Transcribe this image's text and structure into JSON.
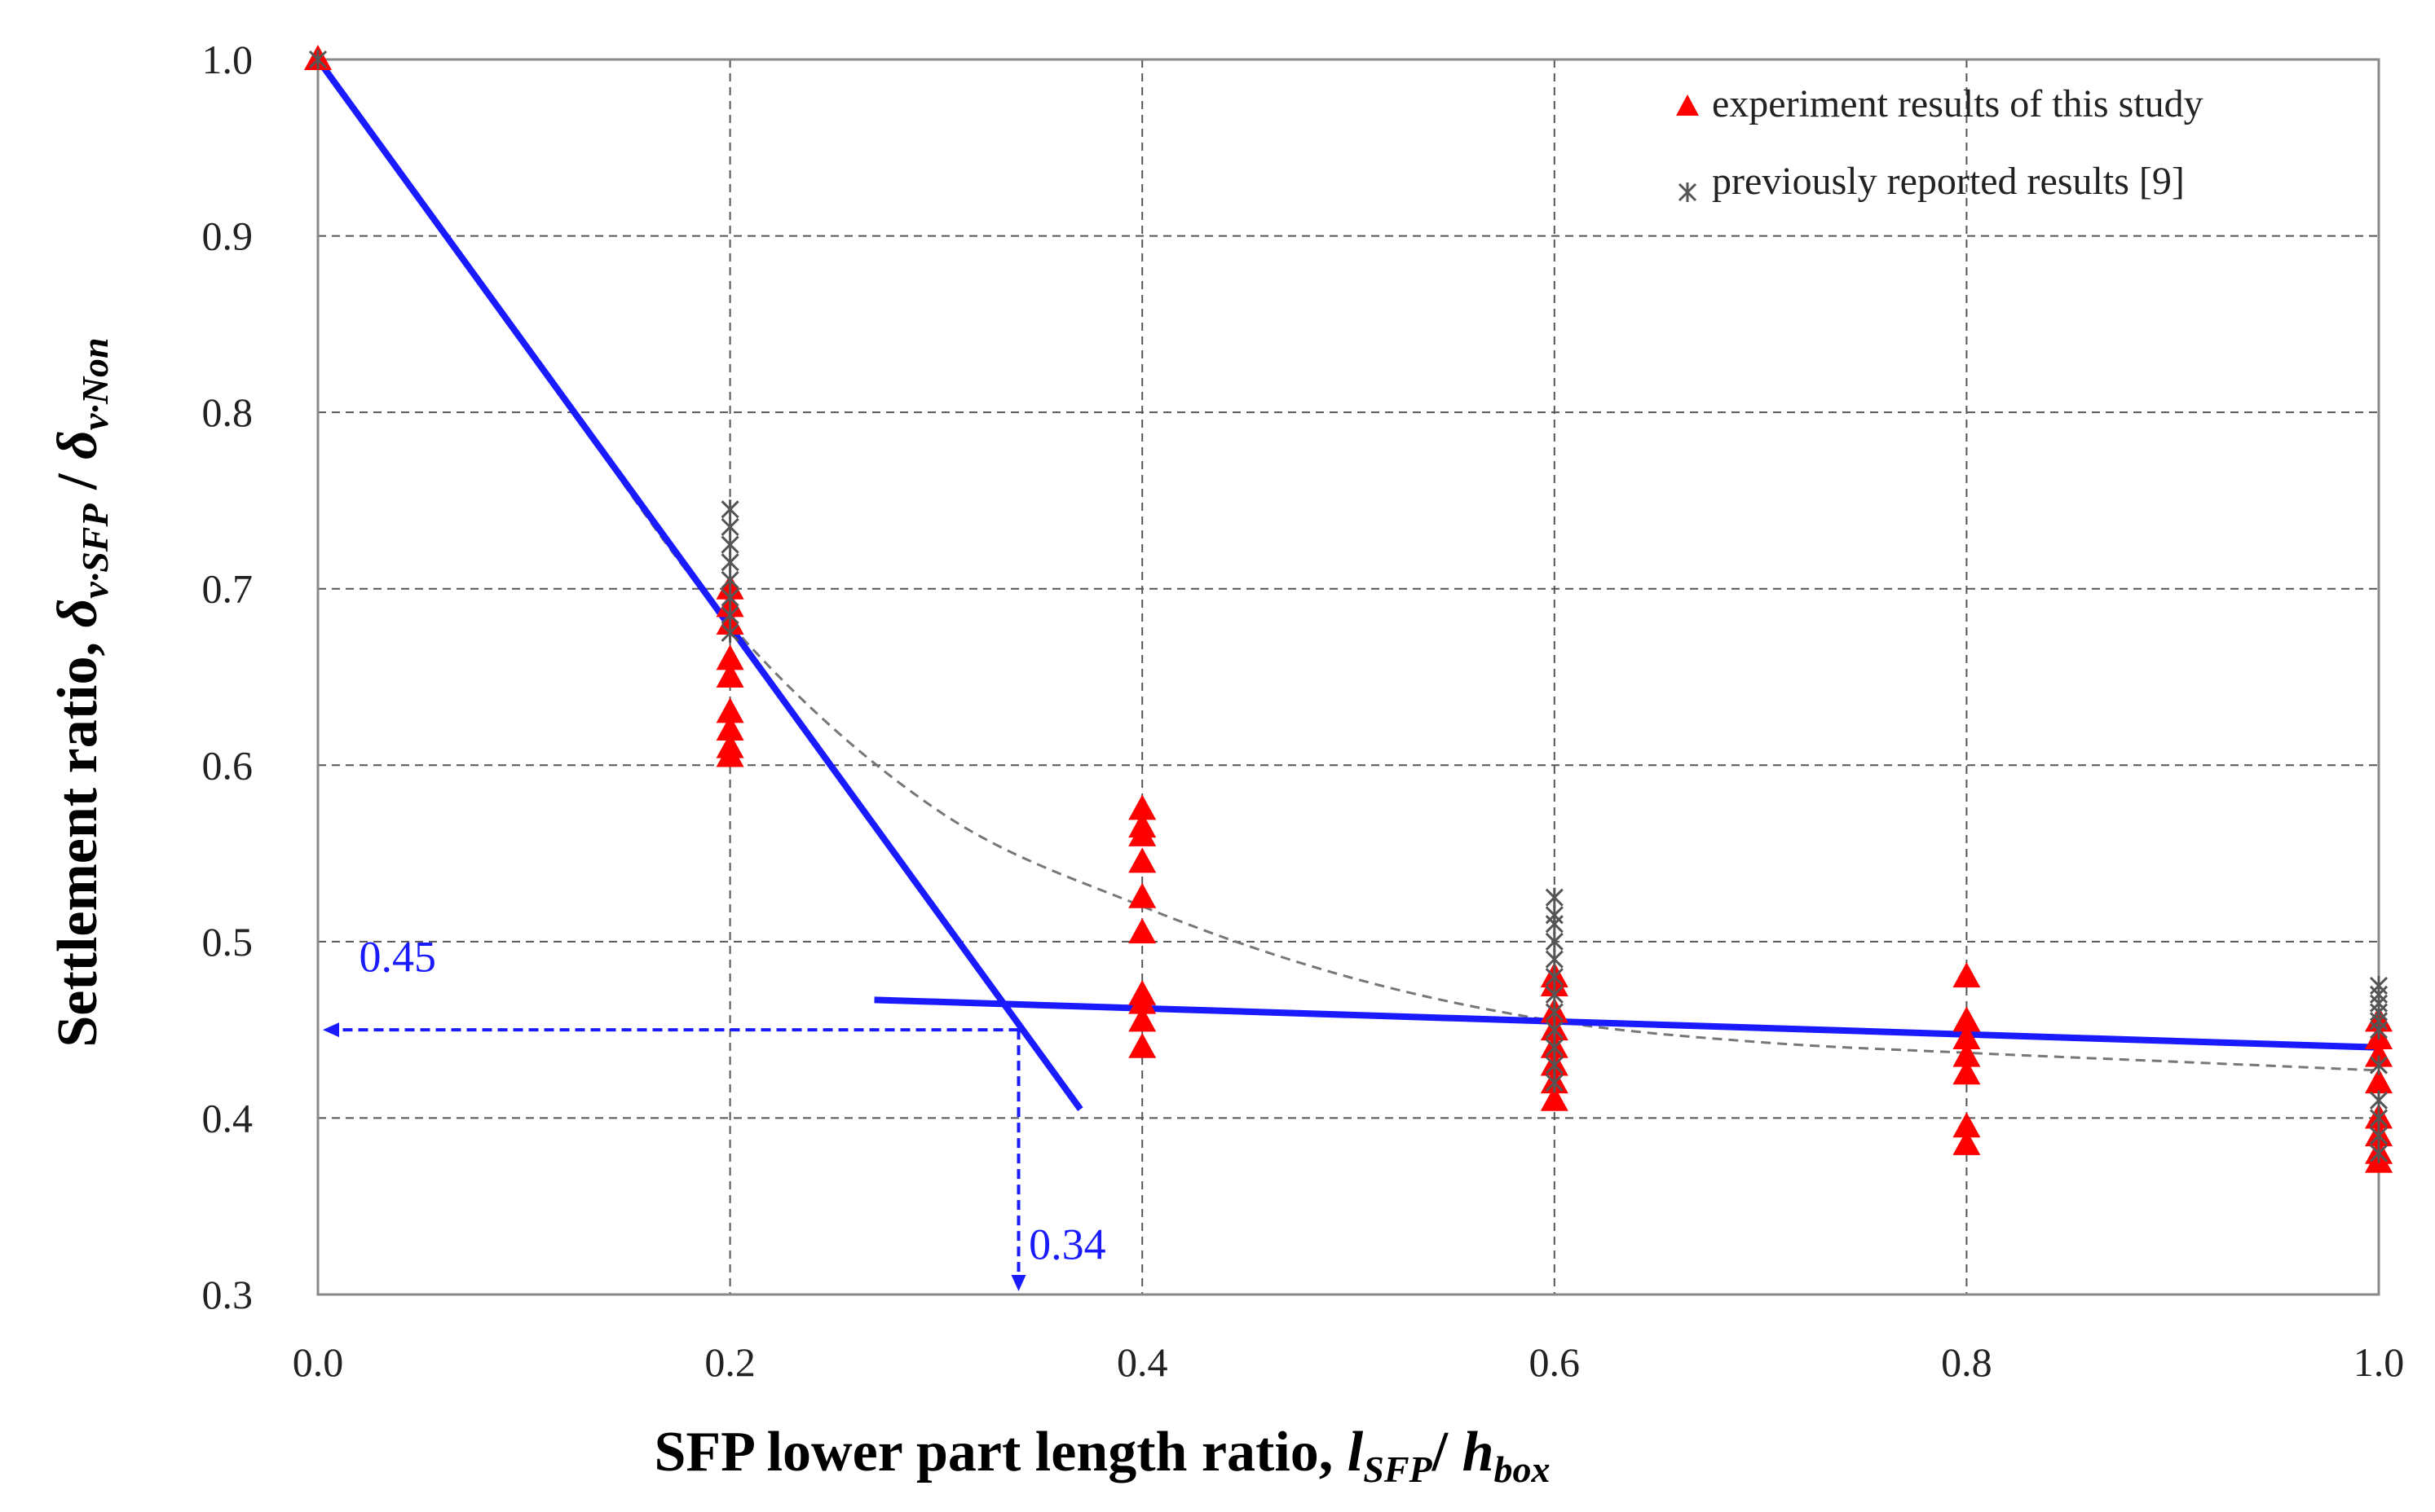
{
  "chart_data": {
    "type": "scatter",
    "xlabel": "SFP lower part length ratio, l_SFP / h_box",
    "xlabel_parts": {
      "main": "SFP lower part length ratio, ",
      "l": "l",
      "l_sub": "SFP",
      "slash": "/ ",
      "h": "h",
      "h_sub": "box"
    },
    "ylabel": "Settlement ratio, δv·SFP / δv·Non",
    "ylabel_parts": {
      "main": "Settlement ratio, ",
      "d1": "δ",
      "d1_sub": "v·SFP",
      "slash": " / ",
      "d2": "δ",
      "d2_sub": "v·Non"
    },
    "xlim": [
      0.0,
      1.0
    ],
    "ylim": [
      0.3,
      1.0
    ],
    "xticks": [
      0.0,
      0.2,
      0.4,
      0.6,
      0.8,
      1.0
    ],
    "xtick_labels": [
      "0.0",
      "0.2",
      "0.4",
      "0.6",
      "0.8",
      "1.0"
    ],
    "yticks": [
      0.3,
      0.4,
      0.5,
      0.6,
      0.7,
      0.8,
      0.9,
      1.0
    ],
    "ytick_labels": [
      "0.3",
      "0.4",
      "0.5",
      "0.6",
      "0.7",
      "0.8",
      "0.9",
      "1.0"
    ],
    "grid": true,
    "legend_position": "top-right",
    "series": [
      {
        "name": "experiment results of this study",
        "marker": "triangle",
        "color": "#ff0000",
        "points": [
          [
            0.0,
            1.0
          ],
          [
            0.2,
            0.7
          ],
          [
            0.2,
            0.69
          ],
          [
            0.2,
            0.68
          ],
          [
            0.2,
            0.66
          ],
          [
            0.2,
            0.65
          ],
          [
            0.2,
            0.63
          ],
          [
            0.2,
            0.62
          ],
          [
            0.2,
            0.61
          ],
          [
            0.2,
            0.605
          ],
          [
            0.4,
            0.575
          ],
          [
            0.4,
            0.565
          ],
          [
            0.4,
            0.56
          ],
          [
            0.4,
            0.545
          ],
          [
            0.4,
            0.525
          ],
          [
            0.4,
            0.505
          ],
          [
            0.4,
            0.47
          ],
          [
            0.4,
            0.465
          ],
          [
            0.4,
            0.455
          ],
          [
            0.4,
            0.44
          ],
          [
            0.6,
            0.48
          ],
          [
            0.6,
            0.475
          ],
          [
            0.6,
            0.46
          ],
          [
            0.6,
            0.45
          ],
          [
            0.6,
            0.44
          ],
          [
            0.6,
            0.43
          ],
          [
            0.6,
            0.42
          ],
          [
            0.6,
            0.41
          ],
          [
            0.8,
            0.48
          ],
          [
            0.8,
            0.455
          ],
          [
            0.8,
            0.445
          ],
          [
            0.8,
            0.435
          ],
          [
            0.8,
            0.425
          ],
          [
            0.8,
            0.395
          ],
          [
            0.8,
            0.385
          ],
          [
            1.0,
            0.455
          ],
          [
            1.0,
            0.445
          ],
          [
            1.0,
            0.435
          ],
          [
            1.0,
            0.42
          ],
          [
            1.0,
            0.4
          ],
          [
            1.0,
            0.39
          ],
          [
            1.0,
            0.38
          ],
          [
            1.0,
            0.375
          ]
        ]
      },
      {
        "name": "previously reported results [9]",
        "marker": "asterisk",
        "color": "#555555",
        "points": [
          [
            0.0,
            1.0
          ],
          [
            0.2,
            0.745
          ],
          [
            0.2,
            0.735
          ],
          [
            0.2,
            0.725
          ],
          [
            0.2,
            0.715
          ],
          [
            0.2,
            0.705
          ],
          [
            0.2,
            0.695
          ],
          [
            0.2,
            0.685
          ],
          [
            0.2,
            0.675
          ],
          [
            0.6,
            0.525
          ],
          [
            0.6,
            0.515
          ],
          [
            0.6,
            0.51
          ],
          [
            0.6,
            0.5
          ],
          [
            0.6,
            0.49
          ],
          [
            0.6,
            0.48
          ],
          [
            0.6,
            0.47
          ],
          [
            0.6,
            0.46
          ],
          [
            0.6,
            0.45
          ],
          [
            0.6,
            0.44
          ],
          [
            0.6,
            0.43
          ],
          [
            0.6,
            0.42
          ],
          [
            1.0,
            0.475
          ],
          [
            1.0,
            0.47
          ],
          [
            1.0,
            0.465
          ],
          [
            1.0,
            0.46
          ],
          [
            1.0,
            0.455
          ],
          [
            1.0,
            0.45
          ],
          [
            1.0,
            0.43
          ],
          [
            1.0,
            0.41
          ],
          [
            1.0,
            0.4
          ],
          [
            1.0,
            0.39
          ],
          [
            1.0,
            0.38
          ]
        ]
      }
    ],
    "trend_curve": [
      [
        0.0,
        1.0
      ],
      [
        0.1,
        0.84
      ],
      [
        0.2,
        0.68
      ],
      [
        0.3,
        0.575
      ],
      [
        0.4,
        0.52
      ],
      [
        0.5,
        0.48
      ],
      [
        0.6,
        0.455
      ],
      [
        0.7,
        0.443
      ],
      [
        0.8,
        0.437
      ],
      [
        0.9,
        0.432
      ],
      [
        1.0,
        0.427
      ]
    ],
    "fit_line_steep": {
      "x": [
        0.0,
        0.37
      ],
      "y": [
        1.0,
        0.405
      ]
    },
    "fit_line_flat": {
      "x": [
        0.27,
        1.0
      ],
      "y": [
        0.467,
        0.44
      ]
    },
    "intersection": {
      "x": 0.34,
      "y": 0.45
    },
    "annotations": [
      {
        "text": "0.45",
        "x": 0.02,
        "y": 0.483
      },
      {
        "text": "0.34",
        "x": 0.345,
        "y": 0.32
      }
    ],
    "line_color": "#1a1aff"
  }
}
